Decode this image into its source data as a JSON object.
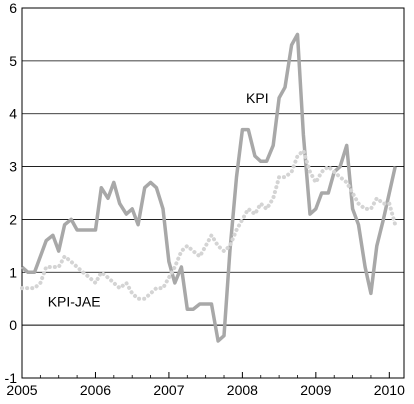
{
  "chart_data": {
    "type": "line",
    "title": "",
    "xlabel": "",
    "ylabel": "",
    "xlim": [
      2005.0,
      2010.2
    ],
    "ylim": [
      -1,
      6
    ],
    "yticks": [
      -1,
      0,
      1,
      2,
      3,
      4,
      5,
      6
    ],
    "xticks": [
      "2005",
      "2006",
      "2007",
      "2008",
      "2009",
      "2010"
    ],
    "grid": "horizontal",
    "legend": "none",
    "colors": {
      "kpi": "#a8a8a8",
      "kpi_jae": "#d4d4d4",
      "grid": "#000000"
    },
    "series": [
      {
        "name": "KPI",
        "style": "solid",
        "x": [
          2005.0,
          2005.08,
          2005.17,
          2005.25,
          2005.33,
          2005.42,
          2005.5,
          2005.58,
          2005.67,
          2005.75,
          2005.83,
          2005.92,
          2006.0,
          2006.08,
          2006.17,
          2006.25,
          2006.33,
          2006.42,
          2006.5,
          2006.58,
          2006.67,
          2006.75,
          2006.83,
          2006.92,
          2007.0,
          2007.08,
          2007.17,
          2007.25,
          2007.33,
          2007.42,
          2007.5,
          2007.58,
          2007.67,
          2007.75,
          2007.83,
          2007.92,
          2008.0,
          2008.08,
          2008.17,
          2008.25,
          2008.33,
          2008.42,
          2008.5,
          2008.58,
          2008.67,
          2008.75,
          2008.83,
          2008.92,
          2009.0,
          2009.08,
          2009.17,
          2009.25,
          2009.33,
          2009.42,
          2009.5,
          2009.58,
          2009.67,
          2009.75,
          2009.83,
          2009.92,
          2010.0,
          2010.08
        ],
        "values": [
          1.1,
          1.0,
          1.0,
          1.3,
          1.6,
          1.7,
          1.4,
          1.9,
          2.0,
          1.8,
          1.8,
          1.8,
          1.8,
          2.6,
          2.4,
          2.7,
          2.3,
          2.1,
          2.2,
          1.9,
          2.6,
          2.7,
          2.6,
          2.2,
          1.2,
          0.8,
          1.1,
          0.3,
          0.3,
          0.4,
          0.4,
          0.4,
          -0.3,
          -0.2,
          1.4,
          2.8,
          3.7,
          3.7,
          3.2,
          3.1,
          3.1,
          3.4,
          4.3,
          4.5,
          5.3,
          5.5,
          3.6,
          2.1,
          2.2,
          2.5,
          2.5,
          2.9,
          3.0,
          3.4,
          2.2,
          1.9,
          1.1,
          0.6,
          1.5,
          2.0,
          2.5,
          3.0
        ]
      },
      {
        "name": "KPI-JAE",
        "style": "dotted",
        "x": [
          2005.0,
          2005.08,
          2005.17,
          2005.25,
          2005.33,
          2005.42,
          2005.5,
          2005.58,
          2005.67,
          2005.75,
          2005.83,
          2005.92,
          2006.0,
          2006.08,
          2006.17,
          2006.25,
          2006.33,
          2006.42,
          2006.5,
          2006.58,
          2006.67,
          2006.75,
          2006.83,
          2006.92,
          2007.0,
          2007.08,
          2007.17,
          2007.25,
          2007.33,
          2007.42,
          2007.5,
          2007.58,
          2007.67,
          2007.75,
          2007.83,
          2007.92,
          2008.0,
          2008.08,
          2008.17,
          2008.25,
          2008.33,
          2008.42,
          2008.5,
          2008.58,
          2008.67,
          2008.75,
          2008.83,
          2008.92,
          2009.0,
          2009.08,
          2009.17,
          2009.25,
          2009.33,
          2009.42,
          2009.5,
          2009.58,
          2009.67,
          2009.75,
          2009.83,
          2009.92,
          2010.0,
          2010.08
        ],
        "values": [
          0.7,
          0.7,
          0.7,
          0.8,
          1.1,
          1.1,
          1.1,
          1.3,
          1.2,
          1.1,
          1.0,
          0.9,
          0.8,
          1.0,
          0.9,
          0.8,
          0.7,
          0.8,
          0.6,
          0.5,
          0.5,
          0.6,
          0.7,
          0.7,
          0.9,
          1.1,
          1.4,
          1.5,
          1.4,
          1.3,
          1.5,
          1.7,
          1.5,
          1.4,
          1.5,
          1.8,
          2.0,
          2.2,
          2.1,
          2.3,
          2.2,
          2.4,
          2.8,
          2.8,
          2.9,
          3.2,
          3.3,
          2.9,
          2.7,
          2.9,
          3.0,
          2.9,
          2.8,
          2.7,
          2.5,
          2.3,
          2.2,
          2.2,
          2.4,
          2.3,
          2.3,
          1.9
        ]
      }
    ],
    "annotations": [
      {
        "text": "KPI",
        "x": 2008.05,
        "y": 4.2
      },
      {
        "text": "KPI-JAE",
        "x": 2005.35,
        "y": 0.35
      }
    ]
  }
}
